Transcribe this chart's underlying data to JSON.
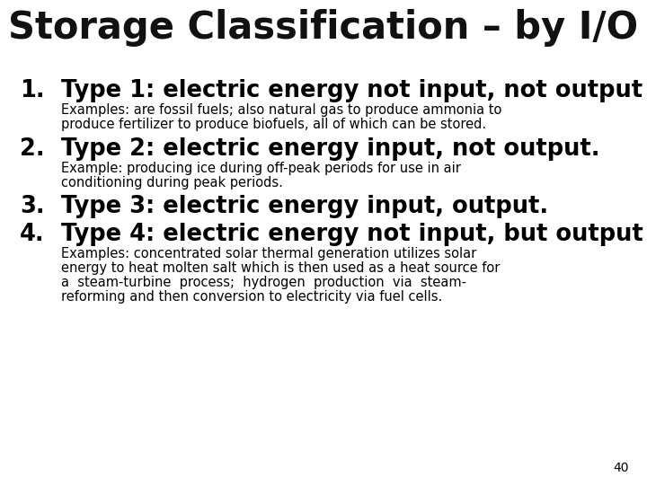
{
  "title": "Storage Classification – by I/O",
  "title_fontsize": 30,
  "title_color": "#111111",
  "background_color": "#ffffff",
  "page_number": "40",
  "items": [
    {
      "number": "1.",
      "heading": "Type 1: electric energy not input, not output",
      "heading_fontsize": 18.5,
      "body_lines": [
        "Examples: are fossil fuels; also natural gas to produce ammonia to",
        "produce fertilizer to produce biofuels, all of which can be stored."
      ],
      "body_fontsize": 10.5
    },
    {
      "number": "2.",
      "heading": "Type 2: electric energy input, not output.",
      "heading_fontsize": 18.5,
      "body_lines": [
        "Example: producing ice during off-peak periods for use in air",
        "conditioning during peak periods."
      ],
      "body_fontsize": 10.5
    },
    {
      "number": "3.",
      "heading": "Type 3: electric energy input, output.",
      "heading_fontsize": 18.5,
      "body_lines": [],
      "body_fontsize": 10.5
    },
    {
      "number": "4.",
      "heading": "Type 4: electric energy not input, but output",
      "heading_fontsize": 18.5,
      "body_lines": [
        "Examples: concentrated solar thermal generation utilizes solar",
        "energy to heat molten salt which is then used as a heat source for",
        "a  steam-turbine  process;  hydrogen  production  via  steam-",
        "reforming and then conversion to electricity via fuel cells."
      ],
      "body_fontsize": 10.5
    }
  ]
}
